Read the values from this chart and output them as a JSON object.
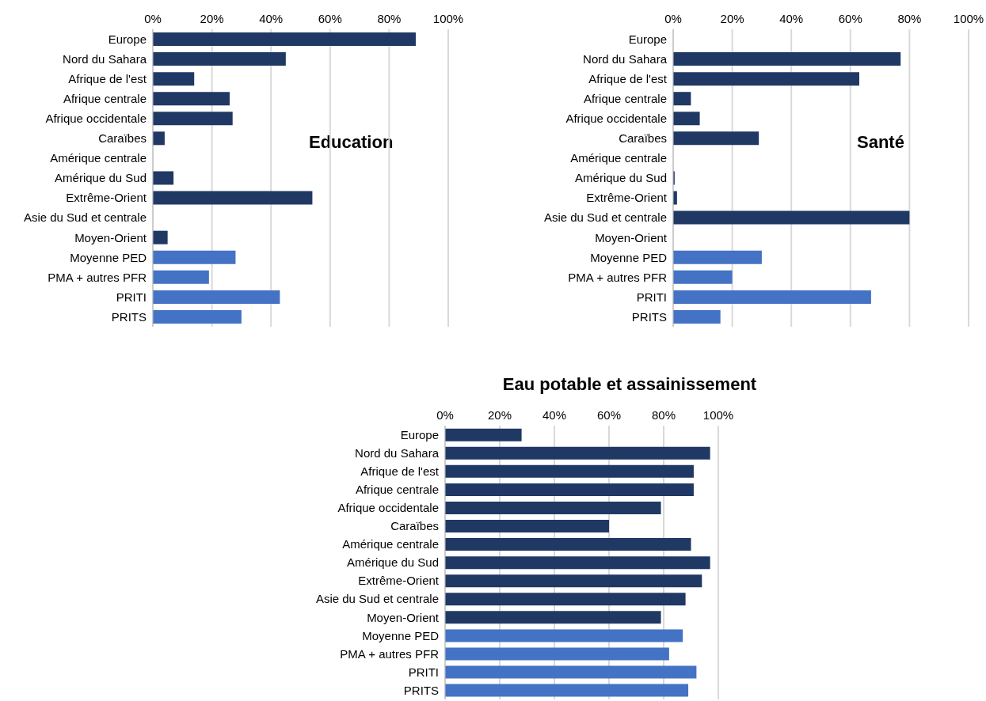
{
  "chart_data": [
    {
      "type": "bar",
      "orientation": "horizontal",
      "title": "Education",
      "categories": [
        "Europe",
        "Nord du Sahara",
        "Afrique de l'est",
        "Afrique centrale",
        "Afrique occidentale",
        "Caraïbes",
        "Amérique centrale",
        "Amérique du Sud",
        "Extrême-Orient",
        "Asie du Sud et centrale",
        "Moyen-Orient",
        "Moyenne PED",
        "PMA + autres PFR",
        "PRITI",
        "PRITS"
      ],
      "values": [
        89,
        45,
        14,
        26,
        27,
        4,
        0,
        7,
        54,
        0,
        5,
        28,
        19,
        43,
        30
      ],
      "colors": [
        "#203864",
        "#203864",
        "#203864",
        "#203864",
        "#203864",
        "#203864",
        "#203864",
        "#203864",
        "#203864",
        "#203864",
        "#203864",
        "#4472c4",
        "#4472c4",
        "#4472c4",
        "#4472c4"
      ],
      "xlim": [
        0,
        100
      ],
      "xticks": [
        {
          "value": 0,
          "label": "0%"
        },
        {
          "value": 20,
          "label": "20%"
        },
        {
          "value": 40,
          "label": "40%"
        },
        {
          "value": 60,
          "label": "60%"
        },
        {
          "value": 80,
          "label": "80%"
        },
        {
          "value": 100,
          "label": "100%"
        }
      ],
      "grid": "x",
      "legend": false
    },
    {
      "type": "bar",
      "orientation": "horizontal",
      "title": "Santé",
      "categories": [
        "Europe",
        "Nord du Sahara",
        "Afrique de l'est",
        "Afrique centrale",
        "Afrique occidentale",
        "Caraïbes",
        "Amérique centrale",
        "Amérique du Sud",
        "Extrême-Orient",
        "Asie du Sud et centrale",
        "Moyen-Orient",
        "Moyenne PED",
        "PMA + autres PFR",
        "PRITI",
        "PRITS"
      ],
      "values": [
        0,
        77,
        63,
        6,
        9,
        29,
        0,
        0.5,
        1.3,
        80,
        0,
        30,
        20,
        67,
        16
      ],
      "colors": [
        "#203864",
        "#203864",
        "#203864",
        "#203864",
        "#203864",
        "#203864",
        "#203864",
        "#203864",
        "#203864",
        "#203864",
        "#203864",
        "#4472c4",
        "#4472c4",
        "#4472c4",
        "#4472c4"
      ],
      "xlim": [
        0,
        100
      ],
      "xticks": [
        {
          "value": 0,
          "label": "0%"
        },
        {
          "value": 20,
          "label": "20%"
        },
        {
          "value": 40,
          "label": "40%"
        },
        {
          "value": 60,
          "label": "60%"
        },
        {
          "value": 80,
          "label": "80%"
        },
        {
          "value": 100,
          "label": "100%"
        }
      ],
      "grid": "x",
      "legend": false
    },
    {
      "type": "bar",
      "orientation": "horizontal",
      "title": "Eau potable et assainissement",
      "categories": [
        "Europe",
        "Nord du Sahara",
        "Afrique de l'est",
        "Afrique centrale",
        "Afrique occidentale",
        "Caraïbes",
        "Amérique centrale",
        "Amérique du Sud",
        "Extrême-Orient",
        "Asie du Sud et centrale",
        "Moyen-Orient",
        "Moyenne PED",
        "PMA + autres PFR",
        "PRITI",
        "PRITS"
      ],
      "values": [
        28,
        97,
        91,
        91,
        79,
        60,
        90,
        97,
        94,
        88,
        79,
        87,
        82,
        92,
        89
      ],
      "colors": [
        "#203864",
        "#203864",
        "#203864",
        "#203864",
        "#203864",
        "#203864",
        "#203864",
        "#203864",
        "#203864",
        "#203864",
        "#203864",
        "#4472c4",
        "#4472c4",
        "#4472c4",
        "#4472c4"
      ],
      "xlim": [
        0,
        100
      ],
      "xticks": [
        {
          "value": 0,
          "label": "0%"
        },
        {
          "value": 20,
          "label": "20%"
        },
        {
          "value": 40,
          "label": "40%"
        },
        {
          "value": 60,
          "label": "60%"
        },
        {
          "value": 80,
          "label": "80%"
        },
        {
          "value": 100,
          "label": "100%"
        }
      ],
      "grid": "x",
      "legend": false
    }
  ]
}
